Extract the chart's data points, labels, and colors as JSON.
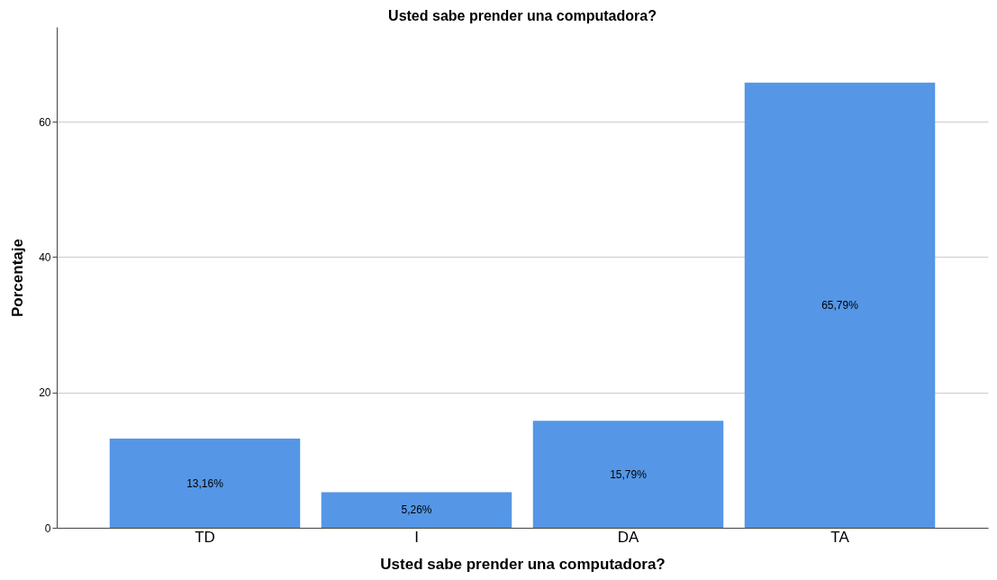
{
  "chart_data": {
    "type": "bar",
    "title": "Usted sabe prender una computadora?",
    "xlabel": "Usted sabe prender una computadora?",
    "ylabel": "Porcentaje",
    "categories": [
      "TD",
      "I",
      "DA",
      "TA"
    ],
    "values": [
      13.16,
      5.26,
      15.79,
      65.79
    ],
    "value_labels": [
      "13,16%",
      "5,26%",
      "15,79%",
      "65,79%"
    ],
    "color": "#5596e6",
    "ylim": [
      0,
      74
    ],
    "yticks": [
      0,
      20,
      40,
      60
    ],
    "grid": "y"
  }
}
